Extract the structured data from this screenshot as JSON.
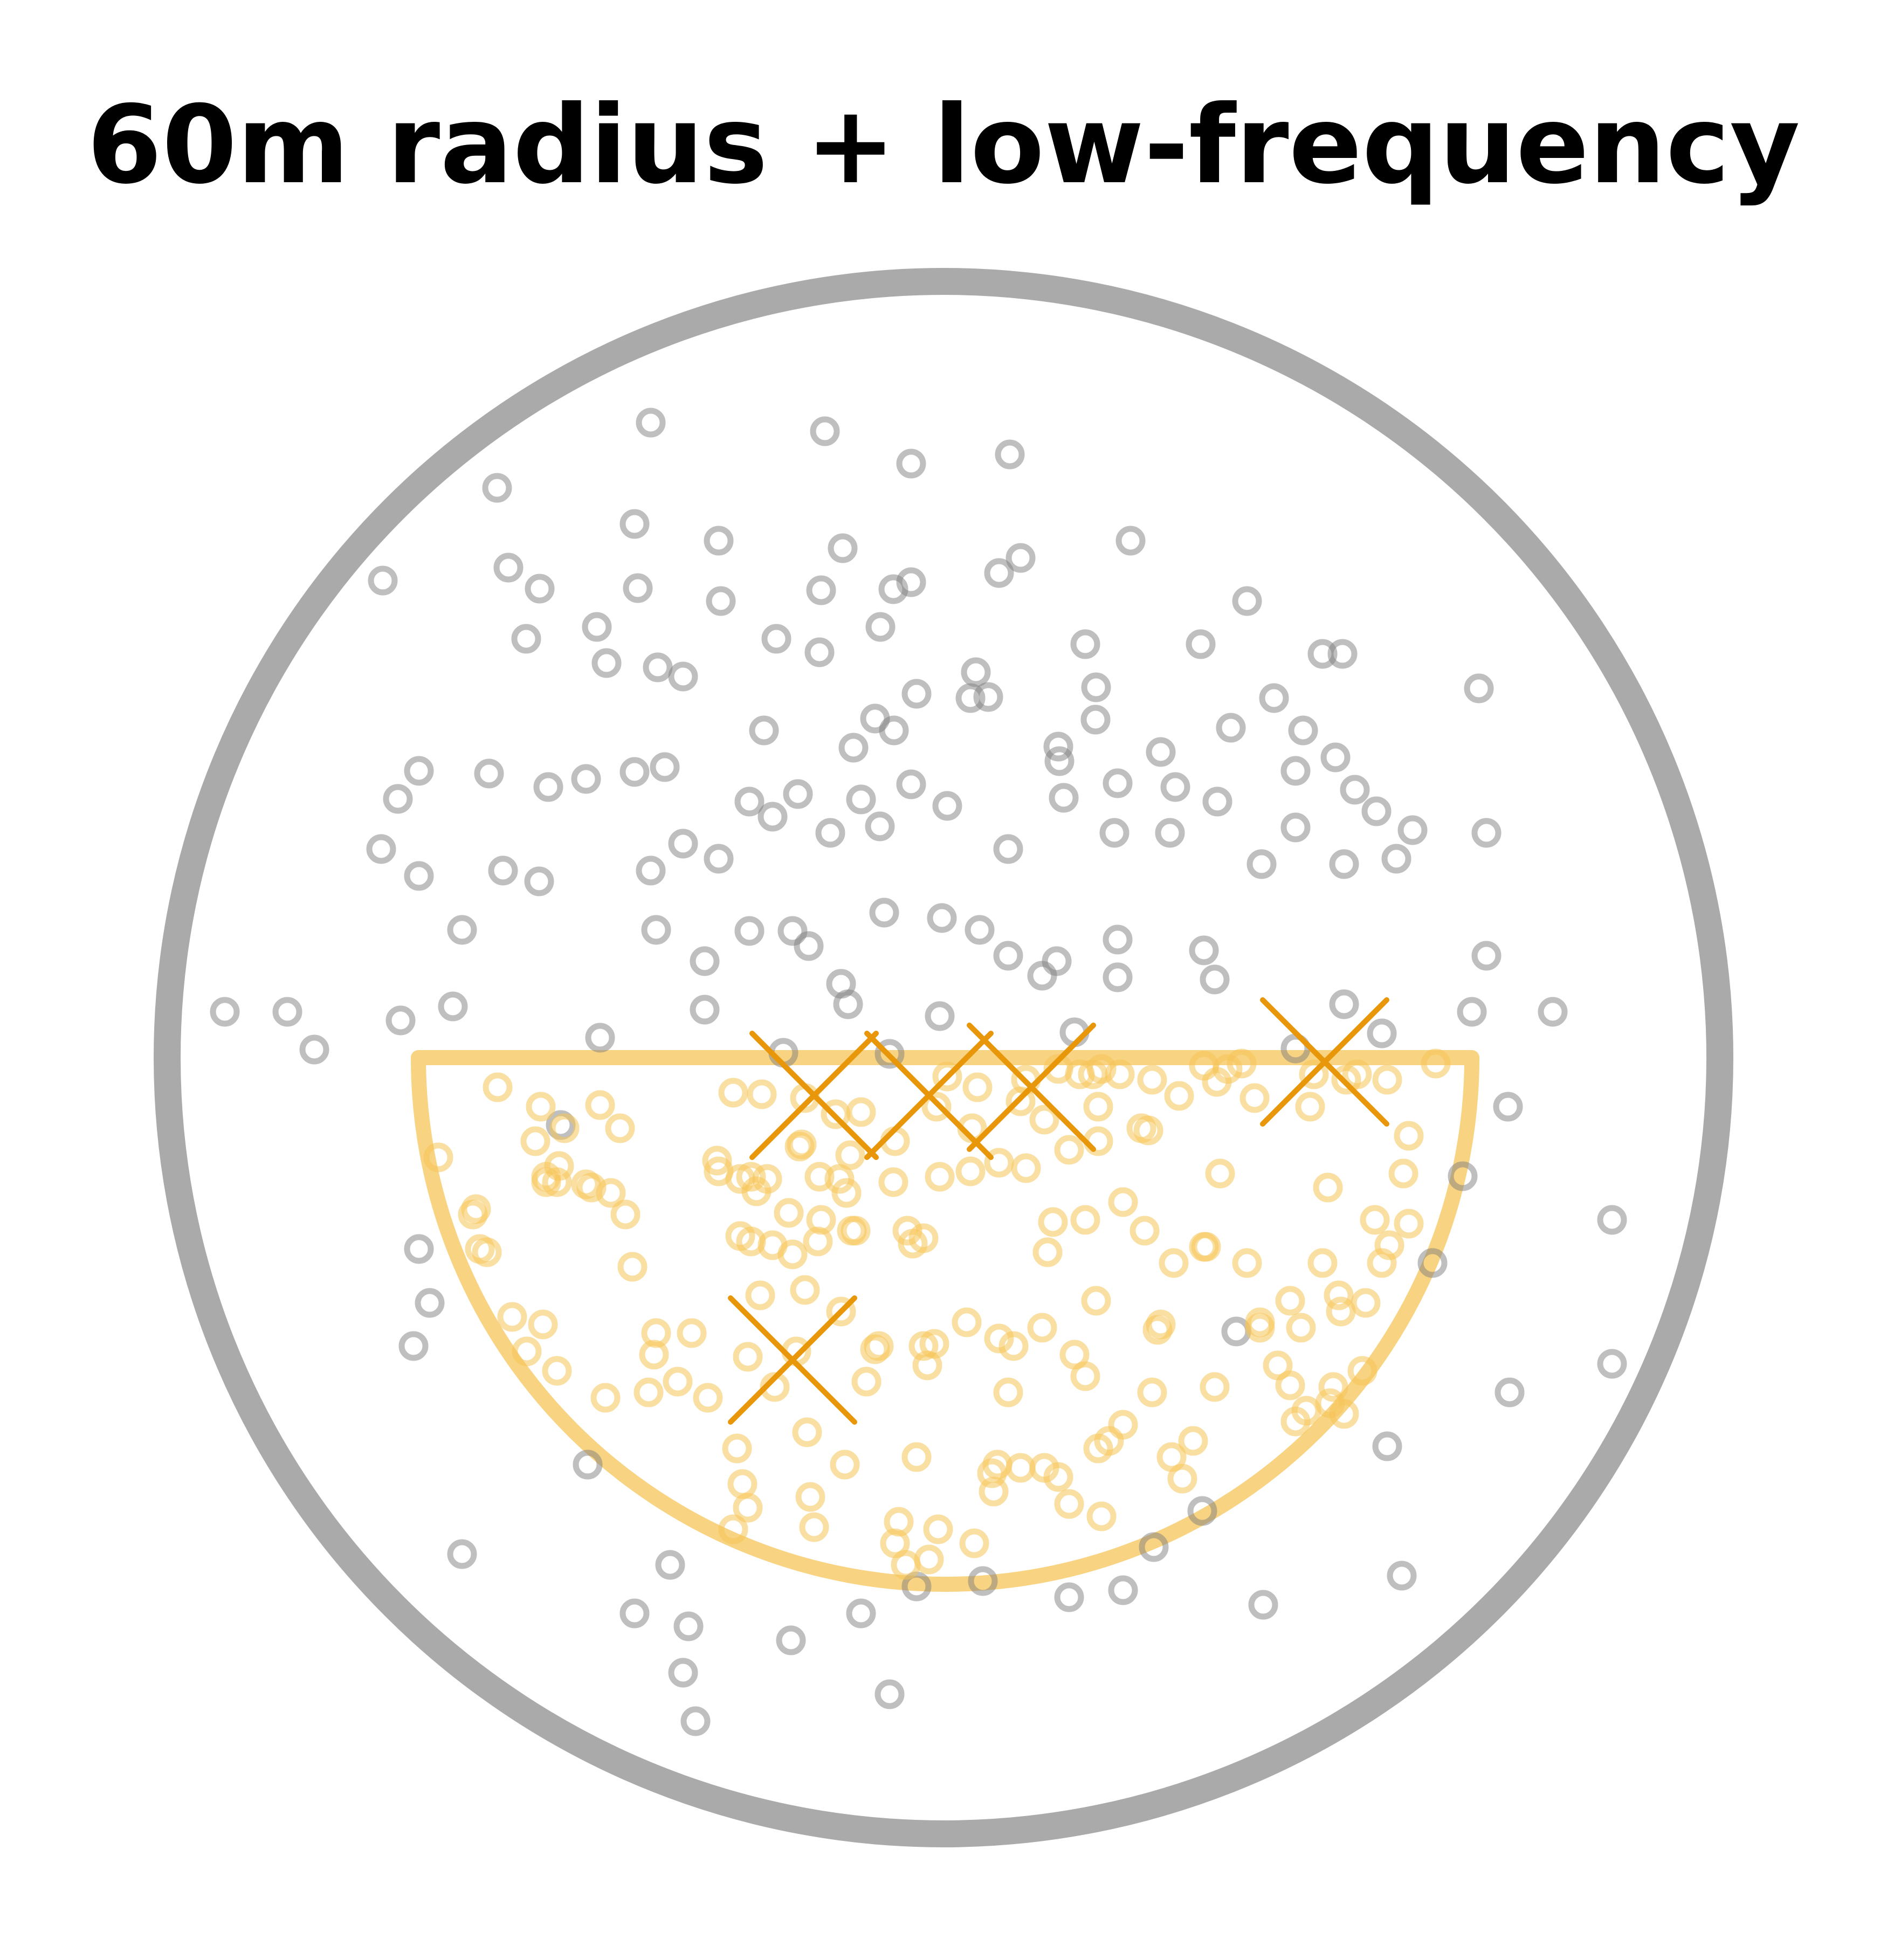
{
  "title": "60m radius + low-frequency",
  "colors": {
    "background": "#ffffff",
    "boundary": "#aaaaaa",
    "outside_points": "#7f7f7f",
    "inside_points": "#f5c457",
    "region": "#f5c457",
    "markers": "#e8960a"
  }
}
